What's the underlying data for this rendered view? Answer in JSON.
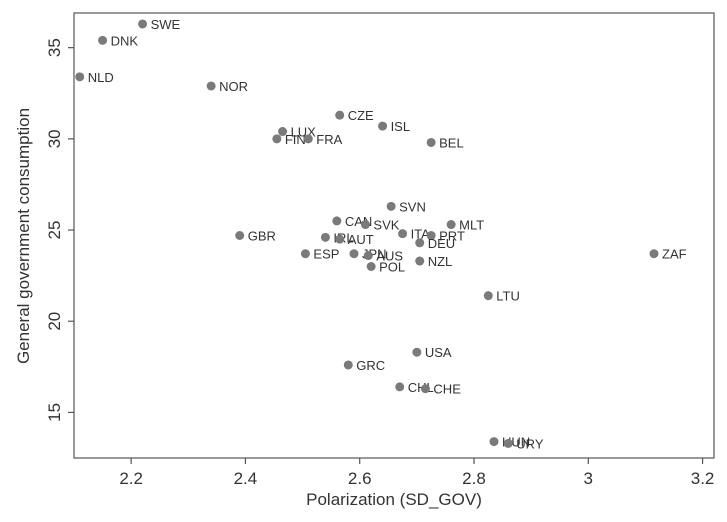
{
  "chart_data": {
    "type": "scatter",
    "xlabel": "Polarization (SD_GOV)",
    "ylabel": "General government consumption",
    "xlim": [
      2.1,
      3.22
    ],
    "ylim": [
      12.5,
      36.9
    ],
    "xticks": [
      2.2,
      2.4,
      2.6,
      2.8,
      3,
      3.2
    ],
    "yticks": [
      15,
      20,
      25,
      30,
      35
    ],
    "grid": false,
    "legend": "none",
    "marker_color": "#7a7a7a",
    "points": [
      {
        "label": "SWE",
        "x": 2.22,
        "y": 36.3
      },
      {
        "label": "DNK",
        "x": 2.15,
        "y": 35.4
      },
      {
        "label": "NLD",
        "x": 2.11,
        "y": 33.4
      },
      {
        "label": "NOR",
        "x": 2.34,
        "y": 32.9
      },
      {
        "label": "CZE",
        "x": 2.565,
        "y": 31.3
      },
      {
        "label": "ISL",
        "x": 2.64,
        "y": 30.7
      },
      {
        "label": "LUX",
        "x": 2.465,
        "y": 30.4
      },
      {
        "label": "FIN",
        "x": 2.455,
        "y": 30.0
      },
      {
        "label": "FRA",
        "x": 2.51,
        "y": 30.0
      },
      {
        "label": "BEL",
        "x": 2.725,
        "y": 29.8
      },
      {
        "label": "SVN",
        "x": 2.655,
        "y": 26.3
      },
      {
        "label": "CAN",
        "x": 2.56,
        "y": 25.5
      },
      {
        "label": "SVK",
        "x": 2.61,
        "y": 25.3
      },
      {
        "label": "MLT",
        "x": 2.76,
        "y": 25.3
      },
      {
        "label": "ITA",
        "x": 2.675,
        "y": 24.8
      },
      {
        "label": "PRT",
        "x": 2.725,
        "y": 24.7
      },
      {
        "label": "GBR",
        "x": 2.39,
        "y": 24.7
      },
      {
        "label": "IRL",
        "x": 2.54,
        "y": 24.6
      },
      {
        "label": "AUT",
        "x": 2.565,
        "y": 24.5
      },
      {
        "label": "DEU",
        "x": 2.705,
        "y": 24.3
      },
      {
        "label": "JPN",
        "x": 2.59,
        "y": 23.7
      },
      {
        "label": "AUS",
        "x": 2.615,
        "y": 23.6
      },
      {
        "label": "ESP",
        "x": 2.505,
        "y": 23.7
      },
      {
        "label": "NZL",
        "x": 2.705,
        "y": 23.3
      },
      {
        "label": "POL",
        "x": 2.62,
        "y": 23.0
      },
      {
        "label": "ZAF",
        "x": 3.115,
        "y": 23.7
      },
      {
        "label": "LTU",
        "x": 2.825,
        "y": 21.4
      },
      {
        "label": "USA",
        "x": 2.7,
        "y": 18.3
      },
      {
        "label": "GRC",
        "x": 2.58,
        "y": 17.6
      },
      {
        "label": "CHL",
        "x": 2.67,
        "y": 16.4
      },
      {
        "label": "CHE",
        "x": 2.715,
        "y": 16.3
      },
      {
        "label": "HUN",
        "x": 2.835,
        "y": 13.4
      },
      {
        "label": "URY",
        "x": 2.86,
        "y": 13.3
      }
    ]
  }
}
